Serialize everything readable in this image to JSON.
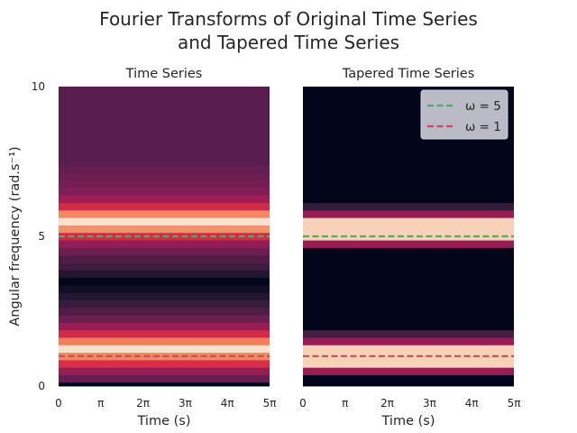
{
  "chart_data": {
    "type": "heatmap",
    "title": "Fourier Transforms of Original Time Series\nand Tapered Time Series",
    "title_lines": [
      "Fourier Transforms of Original Time Series",
      "and Tapered Time Series"
    ],
    "ylabel": "Angular frequency (rad.s⁻¹)",
    "y_ticks": [
      "0",
      "5",
      "10"
    ],
    "ylim": [
      0,
      10
    ],
    "xlim": [
      0,
      15.708
    ],
    "x_tick_labels": [
      "0",
      "π",
      "2π",
      "3π",
      "4π",
      "5π"
    ],
    "colormap": [
      "#03051a",
      "#2b1a37",
      "#5a1e4d",
      "#881e58",
      "#b81c50",
      "#e13342",
      "#f0714e",
      "#f6aa82",
      "#faebdd"
    ],
    "grid": false,
    "panels": [
      {
        "title": "Time Series",
        "xlabel": "Time (s)",
        "band_intensity": [
          0.0,
          0.28,
          0.42,
          0.6,
          0.8,
          0.98,
          0.78,
          0.58,
          0.42,
          0.3,
          0.22,
          0.16,
          0.1,
          0.05,
          0.0,
          0.1,
          0.18,
          0.22,
          0.3,
          0.4,
          0.58,
          0.82,
          0.98,
          0.8,
          0.58,
          0.44,
          0.36,
          0.32,
          0.3,
          0.28,
          0.25,
          0.25,
          0.25,
          0.25,
          0.25,
          0.25,
          0.25,
          0.25,
          0.25,
          0.25,
          0.25
        ],
        "reference_lines": [
          {
            "omega": 5,
            "color": "#55a868"
          },
          {
            "omega": 1,
            "color": "#c44e52"
          }
        ]
      },
      {
        "title": "Tapered Time Series",
        "xlabel": "Time (s)",
        "band_intensity": [
          0.0,
          0.0,
          0.42,
          0.95,
          0.95,
          0.95,
          0.42,
          0.2,
          0.0,
          0.0,
          0.0,
          0.0,
          0.0,
          0.0,
          0.0,
          0.0,
          0.0,
          0.0,
          0.0,
          0.42,
          0.95,
          0.95,
          0.95,
          0.42,
          0.15,
          0.0,
          0.0,
          0.0,
          0.0,
          0.0,
          0.0,
          0.0,
          0.0,
          0.0,
          0.0,
          0.0,
          0.0,
          0.0,
          0.0,
          0.0,
          0.0
        ],
        "reference_lines": [
          {
            "omega": 5,
            "color": "#55a868"
          },
          {
            "omega": 1,
            "color": "#c44e52"
          }
        ],
        "legend": {
          "placement": "upper right",
          "entries": [
            {
              "label": "ω = 5",
              "color": "#55a868"
            },
            {
              "label": "ω = 1",
              "color": "#c44e52"
            }
          ]
        }
      }
    ]
  }
}
